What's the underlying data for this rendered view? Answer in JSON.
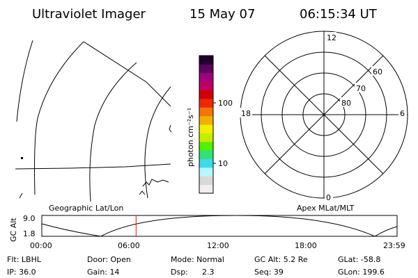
{
  "header": {
    "title": "Ultraviolet Imager",
    "date": "15 May 07",
    "time": "06:15:34 UT"
  },
  "colorbar": {
    "label": "photon cm⁻²s⁻¹",
    "ticks": [
      "100",
      "10"
    ],
    "colors": [
      "#f0f0f0",
      "#d8d8d8",
      "#b8f8f8",
      "#40d8f0",
      "#30e080",
      "#50f000",
      "#c0f000",
      "#f0f000",
      "#f0b000",
      "#f07800",
      "#f02800",
      "#d00000",
      "#c00060",
      "#a00080",
      "#600060",
      "#200030"
    ]
  },
  "left_panel_label": "Geographic Lat/Lon",
  "right_panel_label": "Apex MLat/MLT",
  "polar_plot": {
    "mlt_labels": {
      "top": "12",
      "bottom": "0",
      "left": "18",
      "right": "6"
    },
    "mlat_labels": [
      "60",
      "70",
      "80"
    ]
  },
  "altitude_plot": {
    "ylabel": "GC Alt",
    "ytick_top": "9.0",
    "ytick_bottom": "1.8",
    "xticks": [
      "00:00",
      "06:00",
      "12:00",
      "18:00",
      "23:59"
    ],
    "marker_color": "#ff0000"
  },
  "status": {
    "row1": {
      "flt": "Flt: LBHL",
      "door": "Door: Open",
      "mode": "Mode: Normal",
      "gc_alt": "GC Alt: 5.2 Re",
      "glat": "GLat: -58.8"
    },
    "row2": {
      "ip": "IP: 36.0",
      "gain": "Gain: 14",
      "dsp_label": "Dsp:",
      "dsp_value": "2.3",
      "seq": "Seq: 39",
      "glon": "GLon: 199.6"
    }
  }
}
